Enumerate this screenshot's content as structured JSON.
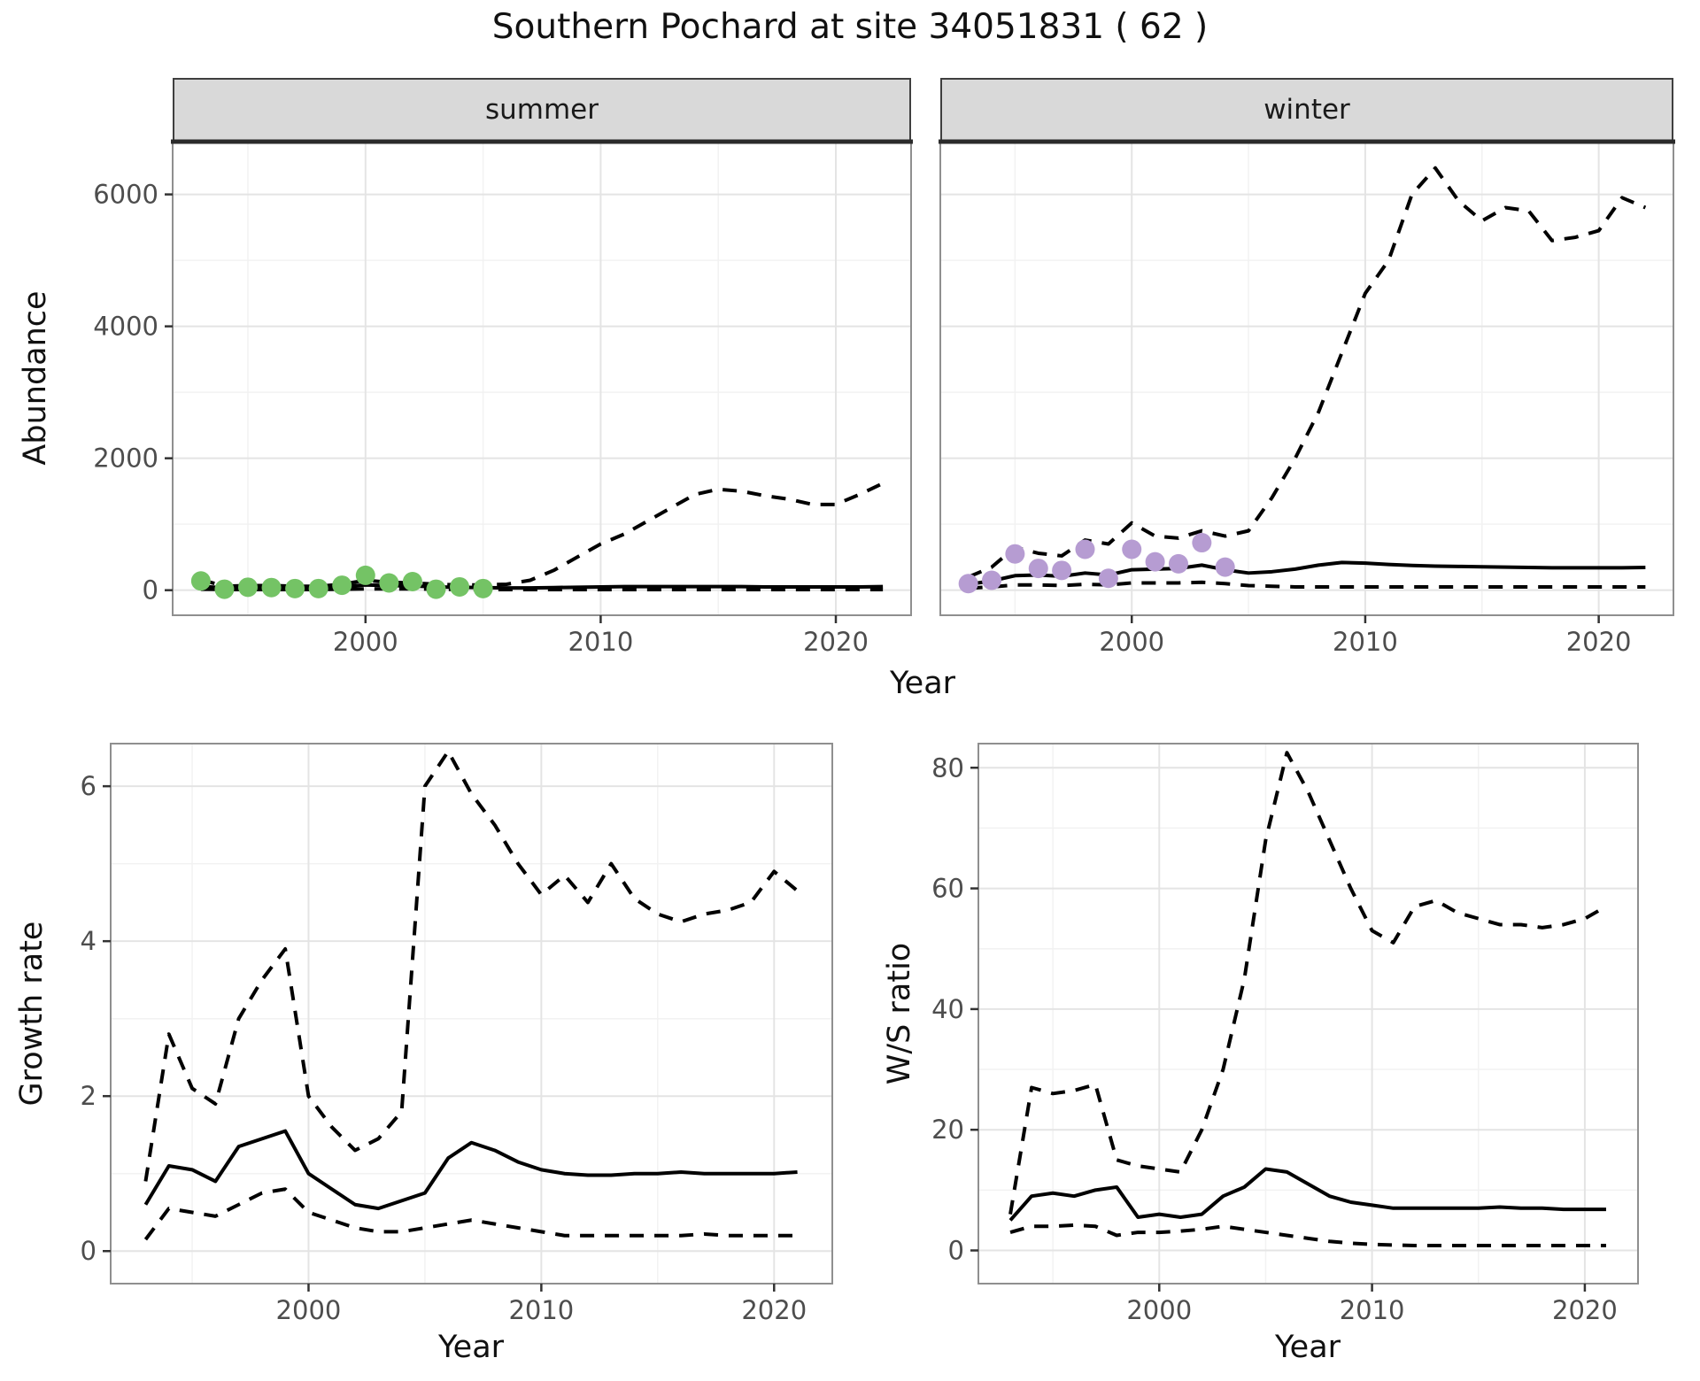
{
  "title": "Southern Pochard at site 34051831 ( 62 )",
  "facets": {
    "summer": "summer",
    "winter": "winter"
  },
  "axes": {
    "abundance": "Abundance",
    "year": "Year",
    "growth": "Growth rate",
    "ratio": "W/S ratio"
  },
  "colors": {
    "line": "#000000",
    "grid_major": "#e4e4e4",
    "grid_minor": "#f2f2f2",
    "panel_border": "#8f8f8f",
    "strip_top_border": "#2b2b2b",
    "tick": "#333333",
    "tick_label": "#4d4d4d",
    "summer_points": "#74c365",
    "winter_points": "#b69cd2"
  },
  "chart_data": [
    {
      "id": "summer",
      "type": "line",
      "facet": "summer",
      "xlabel": "Year",
      "ylabel": "Abundance",
      "xlim": [
        1991.8,
        2023.2
      ],
      "ylim": [
        -380,
        6800
      ],
      "xticks": [
        2000,
        2010,
        2020
      ],
      "yticks": [
        0,
        2000,
        4000,
        6000
      ],
      "xminor": [
        1995,
        2005,
        2015
      ],
      "yminor": [
        1000,
        3000,
        5000
      ],
      "x": [
        1993,
        1994,
        1995,
        1996,
        1997,
        1998,
        1999,
        2000,
        2001,
        2002,
        2003,
        2004,
        2005,
        2006,
        2007,
        2008,
        2009,
        2010,
        2011,
        2012,
        2013,
        2014,
        2015,
        2016,
        2017,
        2018,
        2019,
        2020,
        2021,
        2022
      ],
      "series": [
        {
          "name": "median",
          "style": "solid",
          "values": [
            60,
            35,
            40,
            40,
            35,
            35,
            55,
            80,
            70,
            65,
            50,
            45,
            40,
            35,
            35,
            40,
            45,
            50,
            55,
            55,
            55,
            55,
            55,
            55,
            50,
            50,
            50,
            50,
            50,
            55
          ]
        },
        {
          "name": "upper_ci",
          "style": "dashed",
          "values": [
            160,
            60,
            70,
            70,
            60,
            60,
            90,
            150,
            120,
            110,
            90,
            80,
            80,
            90,
            150,
            300,
            500,
            700,
            850,
            1050,
            1250,
            1450,
            1530,
            1500,
            1430,
            1380,
            1300,
            1300,
            1450,
            1620
          ]
        },
        {
          "name": "lower_ci",
          "style": "dashed",
          "values": [
            15,
            10,
            10,
            10,
            10,
            10,
            15,
            20,
            20,
            20,
            15,
            10,
            10,
            10,
            10,
            10,
            10,
            10,
            10,
            10,
            10,
            10,
            10,
            10,
            10,
            10,
            10,
            10,
            10,
            10
          ]
        },
        {
          "name": "observed_counts",
          "type": "scatter",
          "color": "#74c365",
          "x": [
            1993,
            1994,
            1995,
            1996,
            1997,
            1998,
            1999,
            2000,
            2001,
            2002,
            2003,
            2004,
            2005
          ],
          "values": [
            140,
            15,
            45,
            40,
            25,
            25,
            75,
            225,
            110,
            130,
            15,
            50,
            25
          ]
        }
      ]
    },
    {
      "id": "winter",
      "type": "line",
      "facet": "winter",
      "xlabel": "Year",
      "ylabel": "Abundance",
      "xlim": [
        1991.8,
        2023.2
      ],
      "ylim": [
        -380,
        6800
      ],
      "xticks": [
        2000,
        2010,
        2020
      ],
      "yticks": [
        0,
        2000,
        4000,
        6000
      ],
      "xminor": [
        1995,
        2005,
        2015
      ],
      "yminor": [
        1000,
        3000,
        5000
      ],
      "x": [
        1993,
        1994,
        1995,
        1996,
        1997,
        1998,
        1999,
        2000,
        2001,
        2002,
        2003,
        2004,
        2005,
        2006,
        2007,
        2008,
        2009,
        2010,
        2011,
        2012,
        2013,
        2014,
        2015,
        2016,
        2017,
        2018,
        2019,
        2020,
        2021,
        2022
      ],
      "series": [
        {
          "name": "median",
          "style": "solid",
          "values": [
            90,
            140,
            220,
            230,
            210,
            260,
            230,
            310,
            320,
            330,
            380,
            310,
            260,
            280,
            320,
            380,
            420,
            410,
            390,
            375,
            365,
            360,
            355,
            350,
            345,
            340,
            340,
            340,
            340,
            345
          ]
        },
        {
          "name": "upper_ci",
          "style": "dashed",
          "values": [
            200,
            350,
            650,
            560,
            520,
            760,
            700,
            1020,
            820,
            790,
            900,
            820,
            900,
            1400,
            2000,
            2700,
            3600,
            4500,
            5000,
            6000,
            6400,
            5900,
            5600,
            5800,
            5750,
            5300,
            5350,
            5450,
            5950,
            5800
          ]
        },
        {
          "name": "lower_ci",
          "style": "dashed",
          "values": [
            30,
            50,
            80,
            80,
            70,
            90,
            80,
            110,
            110,
            110,
            120,
            100,
            70,
            60,
            50,
            50,
            50,
            50,
            50,
            50,
            50,
            50,
            50,
            50,
            50,
            50,
            50,
            50,
            50,
            50
          ]
        },
        {
          "name": "observed_counts",
          "type": "scatter",
          "color": "#b69cd2",
          "x": [
            1993,
            1994,
            1995,
            1996,
            1997,
            1998,
            1999,
            2000,
            2001,
            2002,
            2003,
            2004
          ],
          "values": [
            100,
            150,
            550,
            330,
            300,
            620,
            180,
            620,
            430,
            400,
            720,
            350
          ]
        }
      ]
    },
    {
      "id": "growth",
      "type": "line",
      "xlabel": "Year",
      "ylabel": "Growth rate",
      "xlim": [
        1991.5,
        2022.5
      ],
      "ylim": [
        -0.42,
        6.55
      ],
      "xticks": [
        2000,
        2010,
        2020
      ],
      "yticks": [
        0,
        2,
        4,
        6
      ],
      "xminor": [
        1995,
        2005,
        2015
      ],
      "yminor": [
        1,
        3,
        5
      ],
      "x": [
        1993,
        1994,
        1995,
        1996,
        1997,
        1998,
        1999,
        2000,
        2001,
        2002,
        2003,
        2004,
        2005,
        2006,
        2007,
        2008,
        2009,
        2010,
        2011,
        2012,
        2013,
        2014,
        2015,
        2016,
        2017,
        2018,
        2019,
        2020,
        2021
      ],
      "series": [
        {
          "name": "median",
          "style": "solid",
          "values": [
            0.6,
            1.1,
            1.05,
            0.9,
            1.35,
            1.45,
            1.55,
            1.0,
            0.8,
            0.6,
            0.55,
            0.65,
            0.75,
            1.2,
            1.4,
            1.3,
            1.15,
            1.05,
            1.0,
            0.98,
            0.98,
            1.0,
            1.0,
            1.02,
            1.0,
            1.0,
            1.0,
            1.0,
            1.02
          ]
        },
        {
          "name": "upper_ci",
          "style": "dashed",
          "values": [
            0.9,
            2.8,
            2.1,
            1.9,
            3.0,
            3.5,
            3.9,
            2.0,
            1.6,
            1.3,
            1.45,
            1.8,
            6.0,
            6.45,
            5.9,
            5.5,
            5.0,
            4.6,
            4.85,
            4.5,
            5.0,
            4.55,
            4.35,
            4.25,
            4.35,
            4.4,
            4.5,
            4.9,
            4.65
          ]
        },
        {
          "name": "lower_ci",
          "style": "dashed",
          "values": [
            0.15,
            0.55,
            0.5,
            0.45,
            0.6,
            0.75,
            0.8,
            0.5,
            0.4,
            0.3,
            0.25,
            0.25,
            0.3,
            0.35,
            0.4,
            0.35,
            0.3,
            0.25,
            0.2,
            0.2,
            0.2,
            0.2,
            0.2,
            0.2,
            0.22,
            0.2,
            0.2,
            0.2,
            0.2
          ]
        }
      ]
    },
    {
      "id": "ratio",
      "type": "line",
      "xlabel": "Year",
      "ylabel": "W/S ratio",
      "xlim": [
        1991.5,
        2022.5
      ],
      "ylim": [
        -5.5,
        84
      ],
      "xticks": [
        2000,
        2010,
        2020
      ],
      "yticks": [
        0,
        20,
        40,
        60,
        80
      ],
      "xminor": [
        1995,
        2005,
        2015
      ],
      "yminor": [
        10,
        30,
        50,
        70
      ],
      "x": [
        1993,
        1994,
        1995,
        1996,
        1997,
        1998,
        1999,
        2000,
        2001,
        2002,
        2003,
        2004,
        2005,
        2006,
        2007,
        2008,
        2009,
        2010,
        2011,
        2012,
        2013,
        2014,
        2015,
        2016,
        2017,
        2018,
        2019,
        2020,
        2021
      ],
      "series": [
        {
          "name": "median",
          "style": "solid",
          "values": [
            5,
            9,
            9.5,
            9,
            10,
            10.5,
            5.5,
            6,
            5.5,
            6,
            9,
            10.5,
            13.5,
            13,
            11,
            9,
            8,
            7.5,
            7,
            7,
            7,
            7,
            7,
            7.2,
            7,
            7,
            6.8,
            6.8,
            6.8
          ]
        },
        {
          "name": "upper_ci",
          "style": "dashed",
          "values": [
            6,
            27,
            26,
            26.5,
            27.5,
            15,
            14,
            13.5,
            13,
            20,
            30,
            45,
            68,
            82.5,
            76,
            68,
            60,
            53,
            51,
            57,
            58,
            56,
            55,
            54,
            54,
            53.5,
            54,
            55,
            57
          ]
        },
        {
          "name": "lower_ci",
          "style": "dashed",
          "values": [
            3,
            4,
            4,
            4.2,
            4,
            2.5,
            3,
            3,
            3.2,
            3.5,
            4,
            3.5,
            3,
            2.5,
            2,
            1.5,
            1.2,
            1,
            0.9,
            0.8,
            0.8,
            0.8,
            0.8,
            0.8,
            0.8,
            0.8,
            0.8,
            0.8,
            0.8
          ]
        }
      ]
    }
  ]
}
